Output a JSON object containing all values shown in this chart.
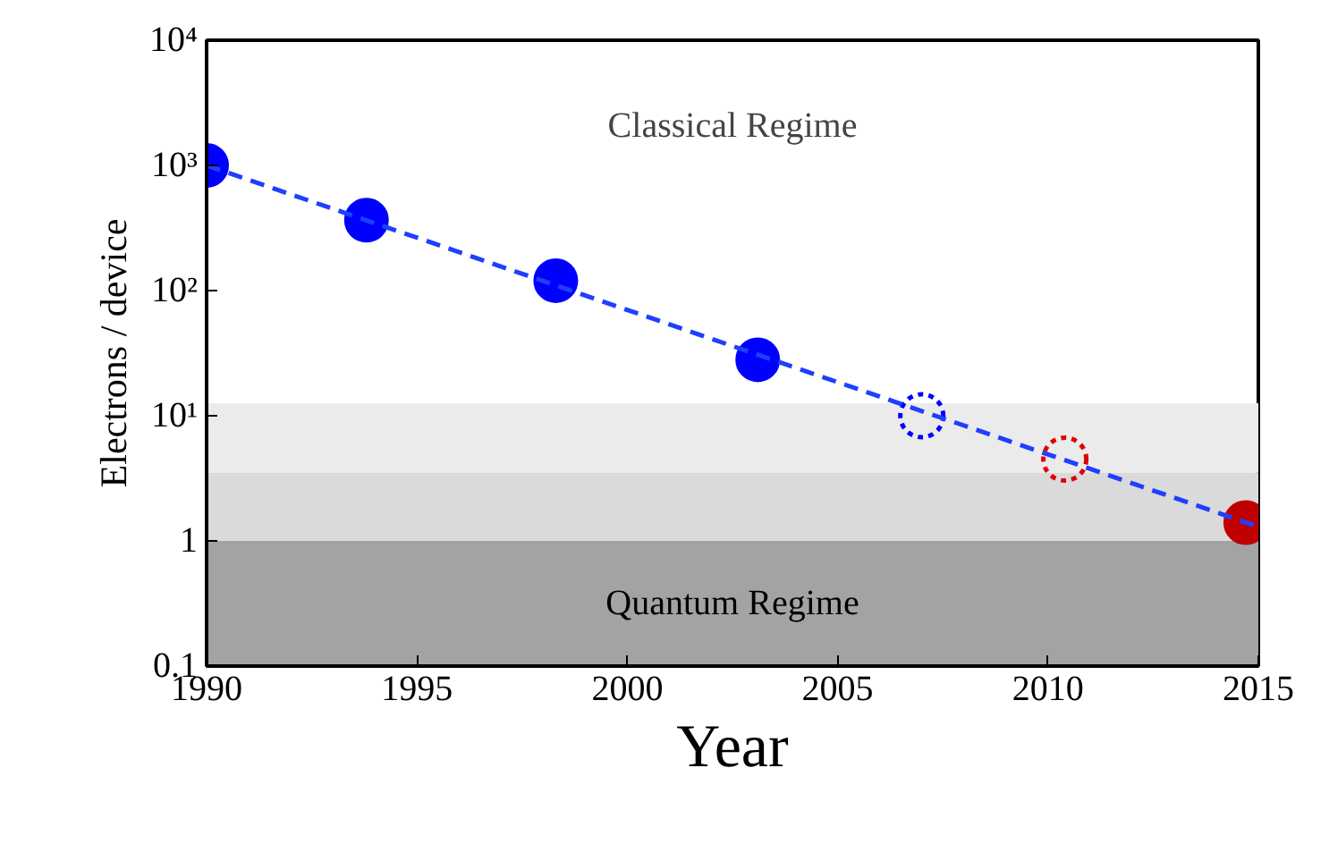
{
  "chart_data": {
    "type": "scatter",
    "xlabel": "Year",
    "ylabel": "Electrons / device",
    "log": "y",
    "grid": false,
    "xlim": [
      1990,
      2015
    ],
    "xticks": [
      1990,
      1995,
      2000,
      2005,
      2010,
      2015
    ],
    "ylim": [
      0.1,
      10000
    ],
    "yticks": [
      {
        "value": 0.1,
        "label": "0.1"
      },
      {
        "value": 1,
        "label": "1"
      },
      {
        "value": 10,
        "label": "10¹"
      },
      {
        "value": 100,
        "label": "10²"
      },
      {
        "value": 1000,
        "label": "10³"
      },
      {
        "value": 10000,
        "label": "10⁴"
      }
    ],
    "bands": [
      {
        "axis": "y",
        "from": 3.5,
        "to": 12.6,
        "color": "#ebebeb",
        "label": null
      },
      {
        "axis": "y",
        "from": 1,
        "to": 3.5,
        "color": "#dadada",
        "label": null
      },
      {
        "axis": "y",
        "from": 0.1,
        "to": 1,
        "color": "#a3a3a3",
        "label": "Quantum Regime"
      }
    ],
    "annotations": [
      "Classical Regime"
    ],
    "series": [
      {
        "type": "line",
        "line_style": "dashed",
        "marker": "none",
        "color": "#1f3fff",
        "x": [
          1990,
          2015
        ],
        "values": [
          1000,
          1.3
        ]
      },
      {
        "marker": "circle",
        "line_style": "solid",
        "color": "#0000ff",
        "x": [
          1990,
          1993.8,
          1998.3,
          2003.1
        ],
        "values": [
          1000,
          365,
          120,
          28
        ]
      },
      {
        "marker": "circle",
        "line_style": "dotted",
        "color": "#0000ff",
        "x": [
          2007.0
        ],
        "values": [
          10
        ]
      },
      {
        "marker": "circle",
        "line_style": "dotted",
        "color": "#e00000",
        "x": [
          2010.4
        ],
        "values": [
          4.5
        ]
      },
      {
        "marker": "circle",
        "line_style": "solid",
        "color": "#c00000",
        "x": [
          2014.7
        ],
        "values": [
          1.4
        ]
      }
    ]
  }
}
